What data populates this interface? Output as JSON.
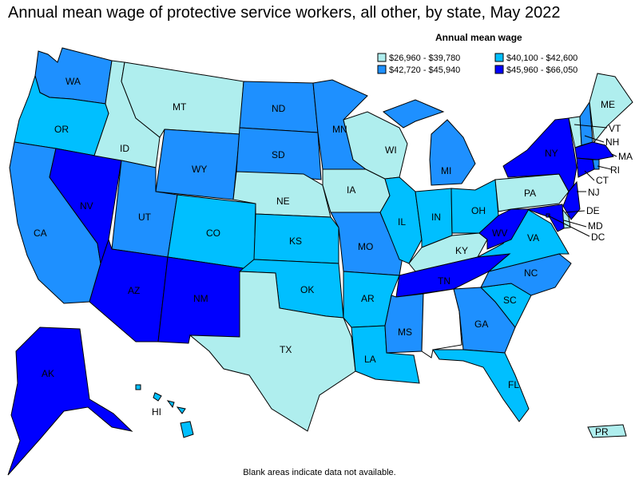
{
  "title": "Annual mean wage of protective service workers, all other, by state, May 2022",
  "legend": {
    "title": "Annual mean wage",
    "items": [
      {
        "label": "$26,960 - $39,780",
        "color": "#afeeee"
      },
      {
        "label": "$40,100 - $42,600",
        "color": "#00bfff"
      },
      {
        "label": "$42,720 - $45,940",
        "color": "#1e90ff"
      },
      {
        "label": "$45,960 - $66,050",
        "color": "#0000ff"
      }
    ]
  },
  "footnote": "Blank areas indicate data not available.",
  "states": {
    "WA": {
      "label": "WA",
      "bin": 2
    },
    "OR": {
      "label": "OR",
      "bin": 1
    },
    "CA": {
      "label": "CA",
      "bin": 2
    },
    "NV": {
      "label": "NV",
      "bin": 3
    },
    "ID": {
      "label": "ID",
      "bin": 0
    },
    "MT": {
      "label": "MT",
      "bin": 0
    },
    "WY": {
      "label": "WY",
      "bin": 2
    },
    "UT": {
      "label": "UT",
      "bin": 2
    },
    "AZ": {
      "label": "AZ",
      "bin": 3
    },
    "CO": {
      "label": "CO",
      "bin": 1
    },
    "NM": {
      "label": "NM",
      "bin": 3
    },
    "ND": {
      "label": "ND",
      "bin": 2
    },
    "SD": {
      "label": "SD",
      "bin": 2
    },
    "NE": {
      "label": "NE",
      "bin": 0
    },
    "KS": {
      "label": "KS",
      "bin": 1
    },
    "OK": {
      "label": "OK",
      "bin": 1
    },
    "TX": {
      "label": "TX",
      "bin": 0
    },
    "MN": {
      "label": "MN",
      "bin": 2
    },
    "IA": {
      "label": "IA",
      "bin": 0
    },
    "MO": {
      "label": "MO",
      "bin": 2
    },
    "AR": {
      "label": "AR",
      "bin": 1
    },
    "LA": {
      "label": "LA",
      "bin": 1
    },
    "WI": {
      "label": "WI",
      "bin": 0
    },
    "IL": {
      "label": "IL",
      "bin": 1
    },
    "MI": {
      "label": "MI",
      "bin": 2
    },
    "IN": {
      "label": "IN",
      "bin": 1
    },
    "OH": {
      "label": "OH",
      "bin": 1
    },
    "KY": {
      "label": "KY",
      "bin": 0
    },
    "TN": {
      "label": "TN",
      "bin": 3
    },
    "MS": {
      "label": "MS",
      "bin": 2
    },
    "AL": {
      "label": "",
      "bin": -1
    },
    "GA": {
      "label": "GA",
      "bin": 2
    },
    "FL": {
      "label": "FL",
      "bin": 1
    },
    "SC": {
      "label": "SC",
      "bin": 1
    },
    "NC": {
      "label": "NC",
      "bin": 2
    },
    "VA": {
      "label": "VA",
      "bin": 1
    },
    "WV": {
      "label": "WV",
      "bin": 3
    },
    "PA": {
      "label": "PA",
      "bin": 0
    },
    "NY": {
      "label": "NY",
      "bin": 3
    },
    "VT": {
      "label": "VT",
      "bin": 0
    },
    "NH": {
      "label": "NH",
      "bin": 2
    },
    "ME": {
      "label": "ME",
      "bin": 0
    },
    "MA": {
      "label": "MA",
      "bin": 3
    },
    "RI": {
      "label": "RI",
      "bin": 2
    },
    "CT": {
      "label": "CT",
      "bin": 3
    },
    "NJ": {
      "label": "NJ",
      "bin": 3
    },
    "DE": {
      "label": "DE",
      "bin": 0
    },
    "MD": {
      "label": "MD",
      "bin": 3
    },
    "DC": {
      "label": "DC",
      "bin": 3
    },
    "AK": {
      "label": "AK",
      "bin": 3
    },
    "HI": {
      "label": "HI",
      "bin": 1
    },
    "PR": {
      "label": "PR",
      "bin": 0
    }
  }
}
